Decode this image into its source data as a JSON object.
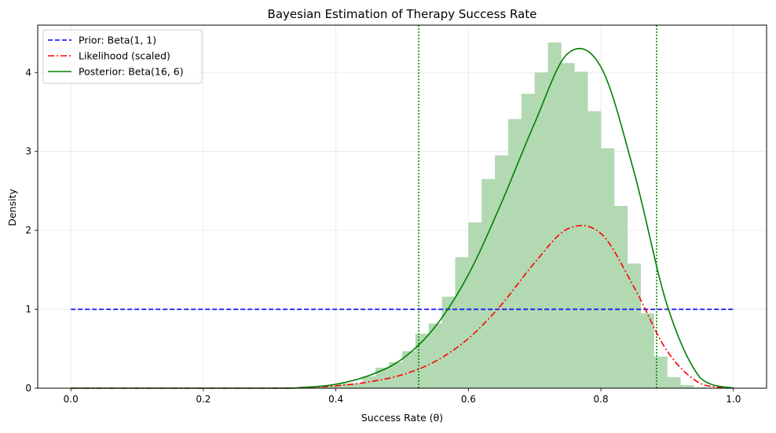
{
  "chart_data": {
    "type": "line",
    "title": "Bayesian Estimation of Therapy Success Rate",
    "xlabel": "Success Rate (θ)",
    "ylabel": "Density",
    "xlim": [
      -0.05,
      1.05
    ],
    "ylim": [
      0,
      4.6
    ],
    "grid": true,
    "legend_position": "top-left",
    "x_ticks": [
      0.0,
      0.2,
      0.4,
      0.6,
      0.8,
      1.0
    ],
    "x_tick_labels": [
      "0.0",
      "0.2",
      "0.4",
      "0.6",
      "0.8",
      "1.0"
    ],
    "y_ticks": [
      0,
      1,
      2,
      3,
      4
    ],
    "y_tick_labels": [
      "0",
      "1",
      "2",
      "3",
      "4"
    ],
    "series": [
      {
        "name": "Prior: Beta(1, 1)",
        "style": "dashed",
        "color": "#0000ff",
        "x": [
          0.0,
          1.0
        ],
        "y": [
          1.0,
          1.0
        ]
      },
      {
        "name": "Likelihood (scaled)",
        "style": "dashdot",
        "color": "#ff0000",
        "x": [
          0.0,
          0.3,
          0.35,
          0.4,
          0.45,
          0.5,
          0.55,
          0.6,
          0.65,
          0.7,
          0.75,
          0.8,
          0.85,
          0.9,
          0.95,
          1.0
        ],
        "y": [
          0.0,
          0.0,
          0.01,
          0.03,
          0.08,
          0.17,
          0.34,
          0.63,
          1.06,
          1.59,
          2.02,
          1.96,
          1.28,
          0.47,
          0.06,
          0.0
        ]
      },
      {
        "name": "Posterior: Beta(16, 6)",
        "style": "solid",
        "color": "#008000",
        "x": [
          0.0,
          0.3,
          0.35,
          0.4,
          0.45,
          0.5,
          0.55,
          0.6,
          0.65,
          0.7,
          0.75,
          0.8,
          0.85,
          0.9,
          0.95,
          1.0
        ],
        "y": [
          0.0,
          0.0,
          0.01,
          0.05,
          0.16,
          0.37,
          0.78,
          1.44,
          2.35,
          3.36,
          4.24,
          4.07,
          2.74,
          1.05,
          0.13,
          0.0
        ]
      }
    ],
    "histogram": {
      "color": "#b2d9b2",
      "bin_width": 0.02,
      "bin_starts": [
        0.34,
        0.36,
        0.38,
        0.4,
        0.42,
        0.44,
        0.46,
        0.48,
        0.5,
        0.52,
        0.54,
        0.56,
        0.58,
        0.6,
        0.62,
        0.64,
        0.66,
        0.68,
        0.7,
        0.72,
        0.74,
        0.76,
        0.78,
        0.8,
        0.82,
        0.84,
        0.86,
        0.88,
        0.9,
        0.92,
        0.94
      ],
      "values": [
        0.01,
        0.02,
        0.03,
        0.06,
        0.06,
        0.15,
        0.26,
        0.33,
        0.47,
        0.69,
        0.82,
        1.16,
        1.66,
        2.1,
        2.65,
        2.95,
        3.41,
        3.73,
        4.0,
        4.38,
        4.12,
        4.01,
        3.51,
        3.04,
        2.31,
        1.58,
        0.95,
        0.4,
        0.14,
        0.04,
        0.01
      ]
    },
    "credible_interval": {
      "color": "#008000",
      "style": "dotted",
      "lower": 0.525,
      "upper": 0.884
    }
  }
}
